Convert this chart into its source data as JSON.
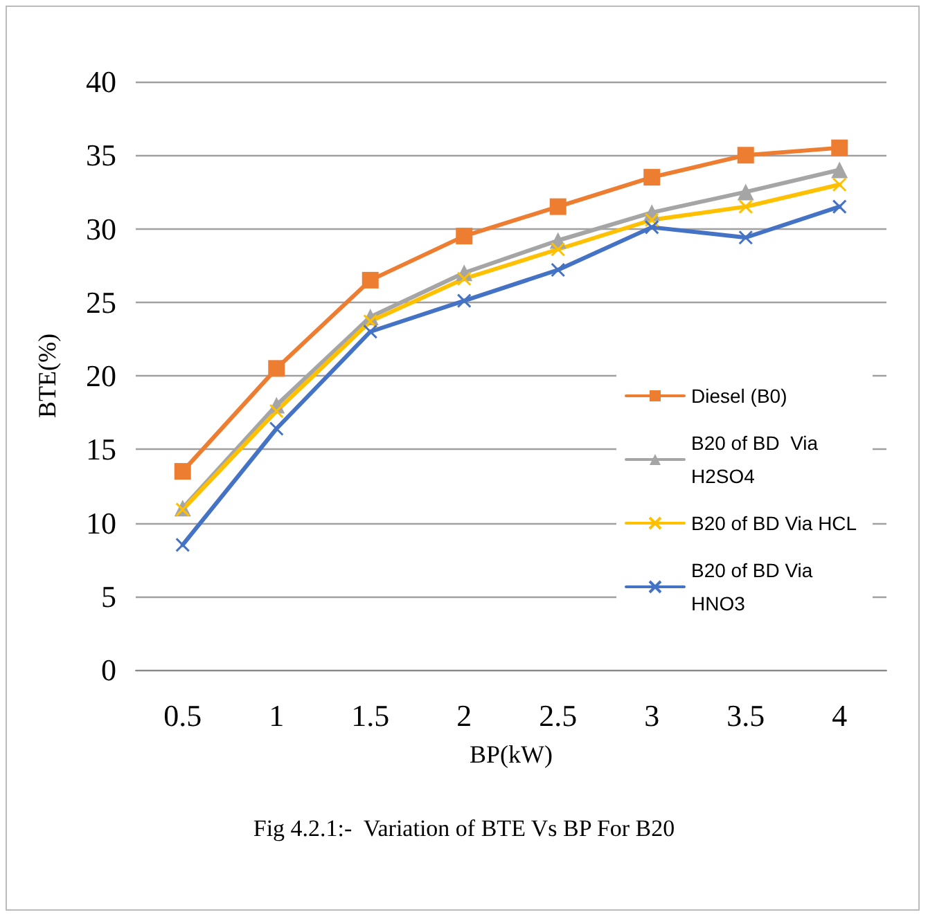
{
  "chart_data": {
    "type": "line",
    "title": "Fig 4.2.1:-  Variation of BTE Vs BP For B20",
    "xlabel": "BP(kW)",
    "ylabel": "BTE(%)",
    "categories": [
      "0.5",
      "1",
      "1.5",
      "2",
      "2.5",
      "3",
      "3.5",
      "4"
    ],
    "series": [
      {
        "name": "Diesel (B0)",
        "color": "#ed7d31",
        "marker": "square",
        "values": [
          13.5,
          20.5,
          26.5,
          29.5,
          31.5,
          33.5,
          35,
          35.5
        ]
      },
      {
        "name": "B20 of BD  Via H2SO4",
        "color": "#a5a5a5",
        "marker": "triangle",
        "values": [
          11,
          18,
          24,
          27,
          29.2,
          31.1,
          32.5,
          34
        ]
      },
      {
        "name": "B20 of BD Via HCL",
        "color": "#ffc000",
        "marker": "cross",
        "values": [
          10.9,
          17.6,
          23.7,
          26.6,
          28.6,
          30.6,
          31.5,
          33
        ]
      },
      {
        "name": "B20 of BD Via HNO3",
        "color": "#4472c4",
        "marker": "cross",
        "values": [
          8.5,
          16.4,
          23,
          25.1,
          27.2,
          30.1,
          29.4,
          31.5
        ]
      }
    ],
    "ylim": [
      0,
      40
    ],
    "yticks": [
      0,
      5,
      10,
      15,
      20,
      25,
      30,
      35,
      40
    ],
    "grid": "y",
    "legend": "right",
    "line_style": "solid"
  }
}
